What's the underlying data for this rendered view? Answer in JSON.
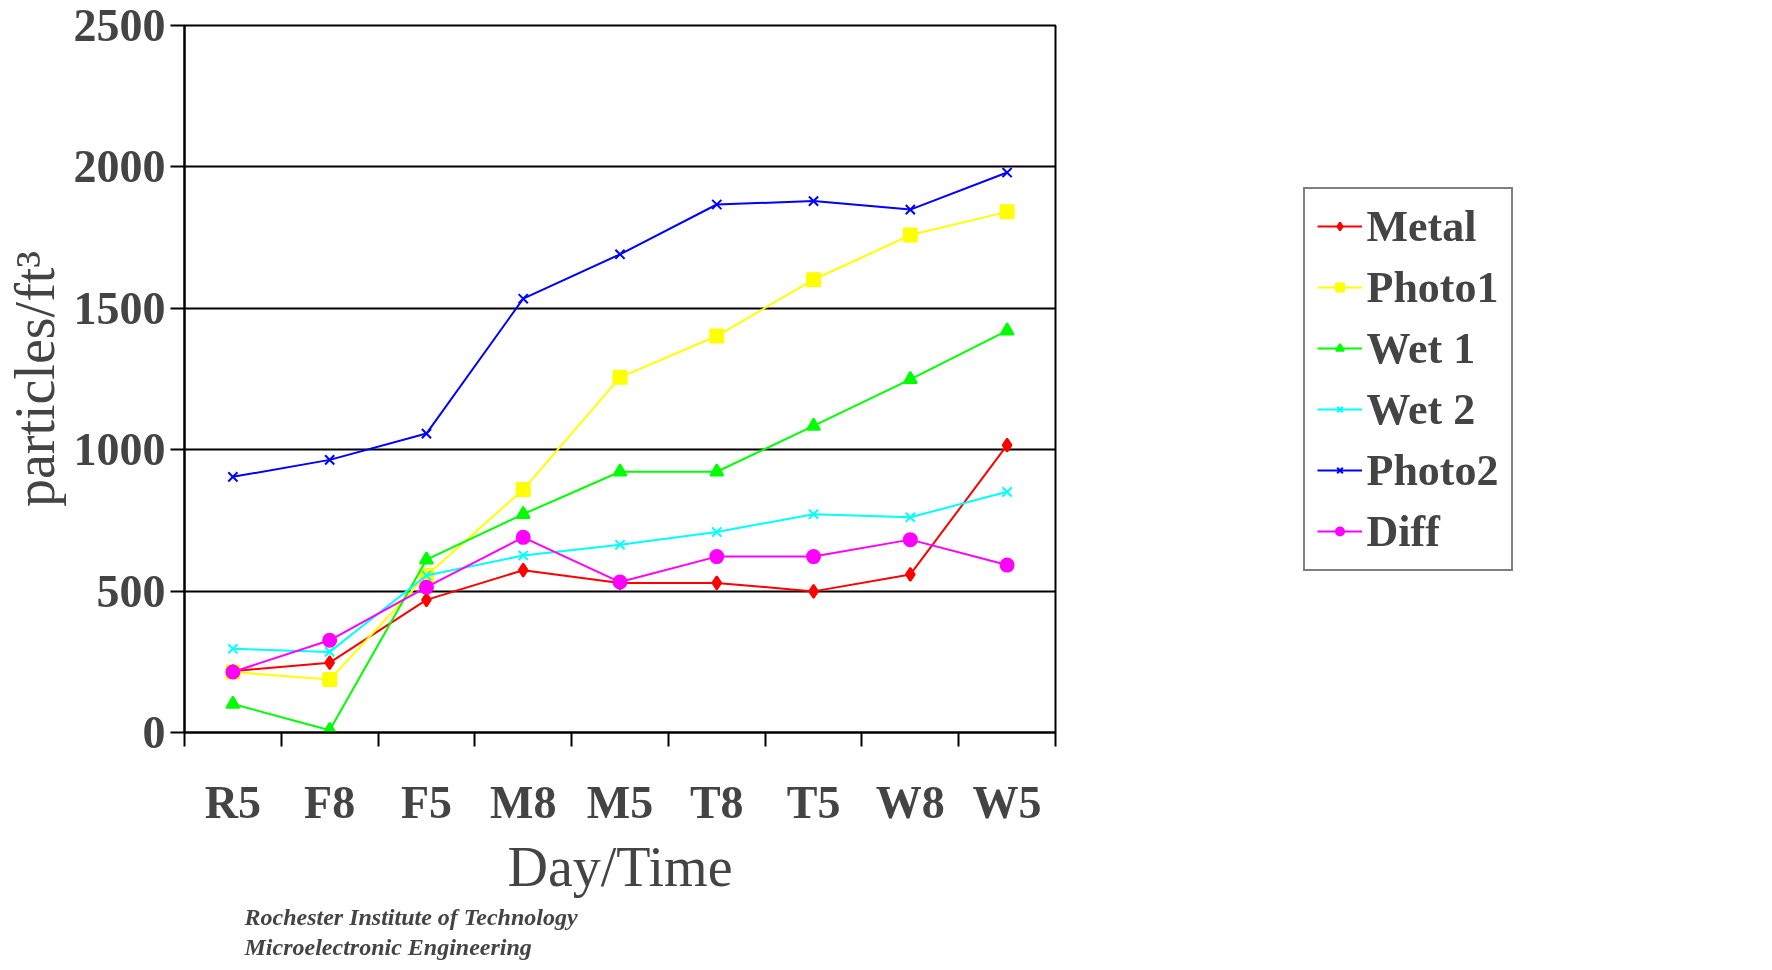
{
  "chart_data": {
    "type": "line",
    "xlabel": "Day/Time",
    "ylabel": "particles/ft³",
    "categories": [
      "R5",
      "F8",
      "F5",
      "M8",
      "M5",
      "T8",
      "T5",
      "W8",
      "W5"
    ],
    "ylim": [
      0,
      2500
    ],
    "yticks": [
      0,
      500,
      1000,
      1500,
      2000,
      2500
    ],
    "grid": "y",
    "legend": "right",
    "series": [
      {
        "name": "Metal",
        "color": "#ff0000",
        "marker": "diamond",
        "values": [
          217,
          247,
          469,
          574,
          529,
          529,
          499,
          559,
          1016
        ]
      },
      {
        "name": "Photo1",
        "color": "#ffff00",
        "marker": "square",
        "values": [
          214,
          187,
          555,
          859,
          1256,
          1402,
          1601,
          1759,
          1841
        ]
      },
      {
        "name": "Wet 1",
        "color": "#00ff00",
        "marker": "triangle",
        "values": [
          101,
          8,
          611,
          772,
          922,
          922,
          1084,
          1249,
          1421
        ]
      },
      {
        "name": "Wet 2",
        "color": "#00ffff",
        "marker": "cross",
        "values": [
          296,
          285,
          555,
          626,
          664,
          709,
          772,
          761,
          851
        ]
      },
      {
        "name": "Photo2",
        "color": "#0000ff",
        "marker": "cross",
        "values": [
          904,
          964,
          1057,
          1534,
          1691,
          1867,
          1879,
          1849,
          1980
        ]
      },
      {
        "name": "Diff",
        "color": "#ff00ff",
        "marker": "circle",
        "values": [
          214,
          326,
          514,
          690,
          532,
          622,
          622,
          682,
          592
        ]
      }
    ],
    "annotations": [
      "Rochester Institute of Technology",
      "Microelectronic Engineering"
    ]
  }
}
